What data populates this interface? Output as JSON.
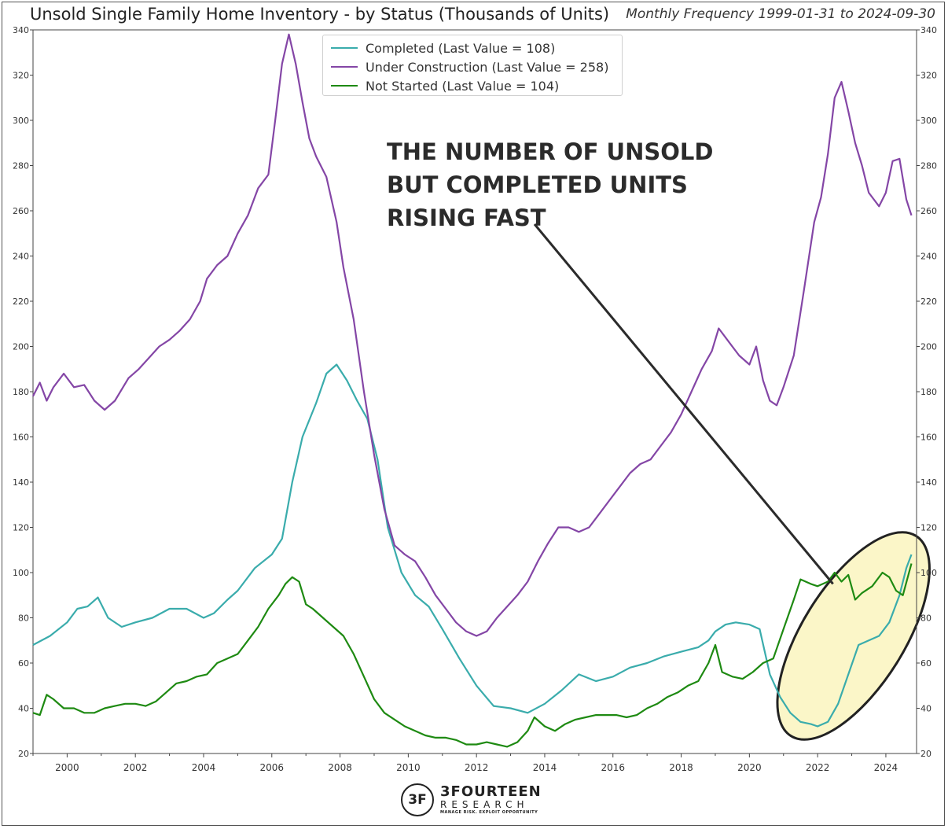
{
  "title": "Unsold Single Family Home Inventory - by Status (Thousands of Units)",
  "subtitle": "Monthly Frequency 1999-01-31 to 2024-09-30",
  "annotation": {
    "lines": [
      "THE NUMBER OF UNSOLD",
      "BUT COMPLETED UNITS",
      "RISING FAST"
    ]
  },
  "logo": {
    "mark": "3F",
    "name": "3FOURTEEN",
    "sub": "RESEARCH",
    "tagline": "MANAGE RISK. EXPLOIT OPPORTUNITY"
  },
  "colors": {
    "completed": "#3aacac",
    "under_construction": "#8446a6",
    "not_started": "#1e8a12",
    "highlight_fill": "#fbf6c8"
  },
  "chart_data": {
    "type": "line",
    "title": "Unsold Single Family Home Inventory - by Status (Thousands of Units)",
    "xlabel": "",
    "ylabel": "",
    "ylim": [
      20,
      340
    ],
    "xlim": [
      1999.0,
      2024.9
    ],
    "yticks": [
      20,
      40,
      60,
      80,
      100,
      120,
      140,
      160,
      180,
      200,
      220,
      240,
      260,
      280,
      300,
      320,
      340
    ],
    "xticks": [
      2000,
      2002,
      2004,
      2006,
      2008,
      2010,
      2012,
      2014,
      2016,
      2018,
      2020,
      2022,
      2024
    ],
    "legend_position": "top-center",
    "series": [
      {
        "name": "Completed (Last Value = 108)",
        "key": "completed",
        "points": [
          [
            1999.0,
            68
          ],
          [
            1999.5,
            72
          ],
          [
            2000.0,
            78
          ],
          [
            2000.3,
            84
          ],
          [
            2000.6,
            85
          ],
          [
            2000.9,
            89
          ],
          [
            2001.2,
            80
          ],
          [
            2001.6,
            76
          ],
          [
            2002.0,
            78
          ],
          [
            2002.5,
            80
          ],
          [
            2003.0,
            84
          ],
          [
            2003.5,
            84
          ],
          [
            2004.0,
            80
          ],
          [
            2004.3,
            82
          ],
          [
            2004.7,
            88
          ],
          [
            2005.0,
            92
          ],
          [
            2005.5,
            102
          ],
          [
            2006.0,
            108
          ],
          [
            2006.3,
            115
          ],
          [
            2006.6,
            140
          ],
          [
            2006.9,
            160
          ],
          [
            2007.3,
            175
          ],
          [
            2007.6,
            188
          ],
          [
            2007.9,
            192
          ],
          [
            2008.2,
            185
          ],
          [
            2008.5,
            176
          ],
          [
            2008.8,
            168
          ],
          [
            2009.1,
            150
          ],
          [
            2009.4,
            120
          ],
          [
            2009.8,
            100
          ],
          [
            2010.2,
            90
          ],
          [
            2010.6,
            85
          ],
          [
            2011.0,
            75
          ],
          [
            2011.5,
            62
          ],
          [
            2012.0,
            50
          ],
          [
            2012.5,
            41
          ],
          [
            2013.0,
            40
          ],
          [
            2013.5,
            38
          ],
          [
            2014.0,
            42
          ],
          [
            2014.5,
            48
          ],
          [
            2015.0,
            55
          ],
          [
            2015.5,
            52
          ],
          [
            2016.0,
            54
          ],
          [
            2016.5,
            58
          ],
          [
            2017.0,
            60
          ],
          [
            2017.5,
            63
          ],
          [
            2018.0,
            65
          ],
          [
            2018.5,
            67
          ],
          [
            2018.8,
            70
          ],
          [
            2019.0,
            74
          ],
          [
            2019.3,
            77
          ],
          [
            2019.6,
            78
          ],
          [
            2020.0,
            77
          ],
          [
            2020.3,
            75
          ],
          [
            2020.6,
            55
          ],
          [
            2020.9,
            45
          ],
          [
            2021.2,
            38
          ],
          [
            2021.5,
            34
          ],
          [
            2021.8,
            33
          ],
          [
            2022.0,
            32
          ],
          [
            2022.3,
            34
          ],
          [
            2022.6,
            42
          ],
          [
            2022.9,
            55
          ],
          [
            2023.2,
            68
          ],
          [
            2023.5,
            70
          ],
          [
            2023.8,
            72
          ],
          [
            2024.1,
            78
          ],
          [
            2024.4,
            90
          ],
          [
            2024.6,
            102
          ],
          [
            2024.75,
            108
          ]
        ]
      },
      {
        "name": "Under Construction (Last Value = 258)",
        "key": "under_construction",
        "points": [
          [
            1999.0,
            178
          ],
          [
            1999.2,
            184
          ],
          [
            1999.4,
            176
          ],
          [
            1999.6,
            182
          ],
          [
            1999.9,
            188
          ],
          [
            2000.2,
            182
          ],
          [
            2000.5,
            183
          ],
          [
            2000.8,
            176
          ],
          [
            2001.1,
            172
          ],
          [
            2001.4,
            176
          ],
          [
            2001.8,
            186
          ],
          [
            2002.1,
            190
          ],
          [
            2002.4,
            195
          ],
          [
            2002.7,
            200
          ],
          [
            2003.0,
            203
          ],
          [
            2003.3,
            207
          ],
          [
            2003.6,
            212
          ],
          [
            2003.9,
            220
          ],
          [
            2004.1,
            230
          ],
          [
            2004.4,
            236
          ],
          [
            2004.7,
            240
          ],
          [
            2005.0,
            250
          ],
          [
            2005.3,
            258
          ],
          [
            2005.6,
            270
          ],
          [
            2005.9,
            276
          ],
          [
            2006.1,
            300
          ],
          [
            2006.3,
            325
          ],
          [
            2006.5,
            338
          ],
          [
            2006.7,
            325
          ],
          [
            2006.9,
            308
          ],
          [
            2007.1,
            292
          ],
          [
            2007.3,
            284
          ],
          [
            2007.6,
            275
          ],
          [
            2007.9,
            255
          ],
          [
            2008.1,
            235
          ],
          [
            2008.4,
            212
          ],
          [
            2008.7,
            180
          ],
          [
            2009.0,
            152
          ],
          [
            2009.3,
            128
          ],
          [
            2009.6,
            112
          ],
          [
            2009.9,
            108
          ],
          [
            2010.2,
            105
          ],
          [
            2010.5,
            98
          ],
          [
            2010.8,
            90
          ],
          [
            2011.1,
            84
          ],
          [
            2011.4,
            78
          ],
          [
            2011.7,
            74
          ],
          [
            2012.0,
            72
          ],
          [
            2012.3,
            74
          ],
          [
            2012.6,
            80
          ],
          [
            2012.9,
            85
          ],
          [
            2013.2,
            90
          ],
          [
            2013.5,
            96
          ],
          [
            2013.8,
            105
          ],
          [
            2014.1,
            113
          ],
          [
            2014.4,
            120
          ],
          [
            2014.7,
            120
          ],
          [
            2015.0,
            118
          ],
          [
            2015.3,
            120
          ],
          [
            2015.6,
            126
          ],
          [
            2015.9,
            132
          ],
          [
            2016.2,
            138
          ],
          [
            2016.5,
            144
          ],
          [
            2016.8,
            148
          ],
          [
            2017.1,
            150
          ],
          [
            2017.4,
            156
          ],
          [
            2017.7,
            162
          ],
          [
            2018.0,
            170
          ],
          [
            2018.3,
            180
          ],
          [
            2018.6,
            190
          ],
          [
            2018.9,
            198
          ],
          [
            2019.1,
            208
          ],
          [
            2019.4,
            202
          ],
          [
            2019.7,
            196
          ],
          [
            2020.0,
            192
          ],
          [
            2020.2,
            200
          ],
          [
            2020.4,
            185
          ],
          [
            2020.6,
            176
          ],
          [
            2020.8,
            174
          ],
          [
            2021.0,
            182
          ],
          [
            2021.3,
            196
          ],
          [
            2021.6,
            225
          ],
          [
            2021.9,
            255
          ],
          [
            2022.1,
            266
          ],
          [
            2022.3,
            285
          ],
          [
            2022.5,
            310
          ],
          [
            2022.7,
            317
          ],
          [
            2022.9,
            304
          ],
          [
            2023.1,
            290
          ],
          [
            2023.3,
            280
          ],
          [
            2023.5,
            268
          ],
          [
            2023.8,
            262
          ],
          [
            2024.0,
            268
          ],
          [
            2024.2,
            282
          ],
          [
            2024.4,
            283
          ],
          [
            2024.6,
            265
          ],
          [
            2024.75,
            258
          ]
        ]
      },
      {
        "name": "Not Started (Last Value = 104)",
        "key": "not_started",
        "points": [
          [
            1999.0,
            38
          ],
          [
            1999.2,
            37
          ],
          [
            1999.4,
            46
          ],
          [
            1999.6,
            44
          ],
          [
            1999.9,
            40
          ],
          [
            2000.2,
            40
          ],
          [
            2000.5,
            38
          ],
          [
            2000.8,
            38
          ],
          [
            2001.1,
            40
          ],
          [
            2001.4,
            41
          ],
          [
            2001.7,
            42
          ],
          [
            2002.0,
            42
          ],
          [
            2002.3,
            41
          ],
          [
            2002.6,
            43
          ],
          [
            2002.9,
            47
          ],
          [
            2003.2,
            51
          ],
          [
            2003.5,
            52
          ],
          [
            2003.8,
            54
          ],
          [
            2004.1,
            55
          ],
          [
            2004.4,
            60
          ],
          [
            2004.7,
            62
          ],
          [
            2005.0,
            64
          ],
          [
            2005.3,
            70
          ],
          [
            2005.6,
            76
          ],
          [
            2005.9,
            84
          ],
          [
            2006.2,
            90
          ],
          [
            2006.4,
            95
          ],
          [
            2006.6,
            98
          ],
          [
            2006.8,
            96
          ],
          [
            2007.0,
            86
          ],
          [
            2007.2,
            84
          ],
          [
            2007.5,
            80
          ],
          [
            2007.8,
            76
          ],
          [
            2008.1,
            72
          ],
          [
            2008.4,
            64
          ],
          [
            2008.7,
            54
          ],
          [
            2009.0,
            44
          ],
          [
            2009.3,
            38
          ],
          [
            2009.6,
            35
          ],
          [
            2009.9,
            32
          ],
          [
            2010.2,
            30
          ],
          [
            2010.5,
            28
          ],
          [
            2010.8,
            27
          ],
          [
            2011.1,
            27
          ],
          [
            2011.4,
            26
          ],
          [
            2011.7,
            24
          ],
          [
            2012.0,
            24
          ],
          [
            2012.3,
            25
          ],
          [
            2012.6,
            24
          ],
          [
            2012.9,
            23
          ],
          [
            2013.2,
            25
          ],
          [
            2013.5,
            30
          ],
          [
            2013.7,
            36
          ],
          [
            2014.0,
            32
          ],
          [
            2014.3,
            30
          ],
          [
            2014.6,
            33
          ],
          [
            2014.9,
            35
          ],
          [
            2015.2,
            36
          ],
          [
            2015.5,
            37
          ],
          [
            2015.8,
            37
          ],
          [
            2016.1,
            37
          ],
          [
            2016.4,
            36
          ],
          [
            2016.7,
            37
          ],
          [
            2017.0,
            40
          ],
          [
            2017.3,
            42
          ],
          [
            2017.6,
            45
          ],
          [
            2017.9,
            47
          ],
          [
            2018.2,
            50
          ],
          [
            2018.5,
            52
          ],
          [
            2018.8,
            60
          ],
          [
            2019.0,
            68
          ],
          [
            2019.2,
            56
          ],
          [
            2019.5,
            54
          ],
          [
            2019.8,
            53
          ],
          [
            2020.1,
            56
          ],
          [
            2020.4,
            60
          ],
          [
            2020.7,
            62
          ],
          [
            2021.0,
            75
          ],
          [
            2021.3,
            88
          ],
          [
            2021.5,
            97
          ],
          [
            2021.8,
            95
          ],
          [
            2022.0,
            94
          ],
          [
            2022.3,
            96
          ],
          [
            2022.5,
            100
          ],
          [
            2022.7,
            96
          ],
          [
            2022.9,
            99
          ],
          [
            2023.1,
            88
          ],
          [
            2023.3,
            91
          ],
          [
            2023.6,
            94
          ],
          [
            2023.9,
            100
          ],
          [
            2024.1,
            98
          ],
          [
            2024.3,
            92
          ],
          [
            2024.5,
            90
          ],
          [
            2024.75,
            104
          ]
        ]
      }
    ]
  }
}
